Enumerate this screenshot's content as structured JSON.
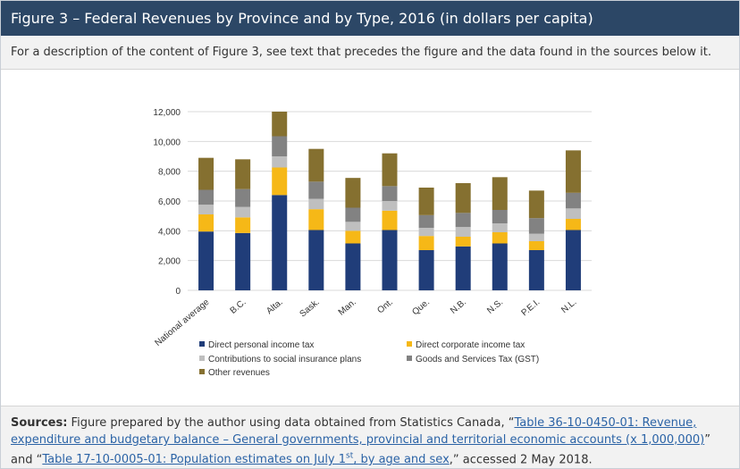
{
  "title": "Figure 3 – Federal Revenues by Province and by Type, 2016 (in dollars per capita)",
  "description": "For a description of the content of Figure 3, see text that precedes the figure and the data found in the sources below it.",
  "sources": {
    "label": "Sources:",
    "text1": " Figure prepared by the author using data obtained from Statistics Canada, “",
    "link1": "Table 36-10-0450-01: Revenue, expenditure and budgetary balance – General governments, provincial and territorial economic accounts (x 1,000,000)",
    "text2": "” and “",
    "link2_part1": "Table 17-10-0005-01: Population estimates on July 1",
    "link2_sup": "st",
    "link2_part2": ", by age and sex",
    "text3": ",” accessed 2 May 2018."
  },
  "colors": {
    "title_bg": "#2c4766",
    "link": "#2b63a6"
  },
  "chart_data": {
    "type": "bar",
    "stacked": true,
    "categories": [
      "National average",
      "B.C.",
      "Alta.",
      "Sask.",
      "Man.",
      "Ont.",
      "Que.",
      "N.B.",
      "N.S.",
      "P.E.I.",
      "N.L."
    ],
    "ylim": [
      0,
      12000
    ],
    "yticks": [
      0,
      2000,
      4000,
      6000,
      8000,
      10000,
      12000
    ],
    "ytick_labels": [
      "0",
      "2,000",
      "4,000",
      "6,000",
      "8,000",
      "10,000",
      "12,000"
    ],
    "grid": true,
    "legend_position": "bottom",
    "series": [
      {
        "name": "Direct personal income tax",
        "color": "#203d79",
        "values": [
          3950,
          3850,
          6400,
          4050,
          3150,
          4050,
          2700,
          2950,
          3150,
          2700,
          4050
        ]
      },
      {
        "name": "Direct corporate income tax",
        "color": "#f6b817",
        "values": [
          1150,
          1050,
          1850,
          1400,
          850,
          1300,
          950,
          650,
          750,
          600,
          750
        ]
      },
      {
        "name": "Contributions to social insurance plans",
        "color": "#bfbfbf",
        "values": [
          650,
          700,
          750,
          700,
          600,
          650,
          550,
          650,
          600,
          500,
          700
        ]
      },
      {
        "name": "Goods and Services Tax (GST)",
        "color": "#828282",
        "values": [
          1000,
          1200,
          1350,
          1150,
          950,
          1000,
          850,
          950,
          900,
          1050,
          1050
        ]
      },
      {
        "name": "Other revenues",
        "color": "#857030",
        "values": [
          2150,
          2000,
          1650,
          2200,
          2000,
          2200,
          1850,
          2000,
          2200,
          1850,
          2850
        ]
      }
    ]
  }
}
